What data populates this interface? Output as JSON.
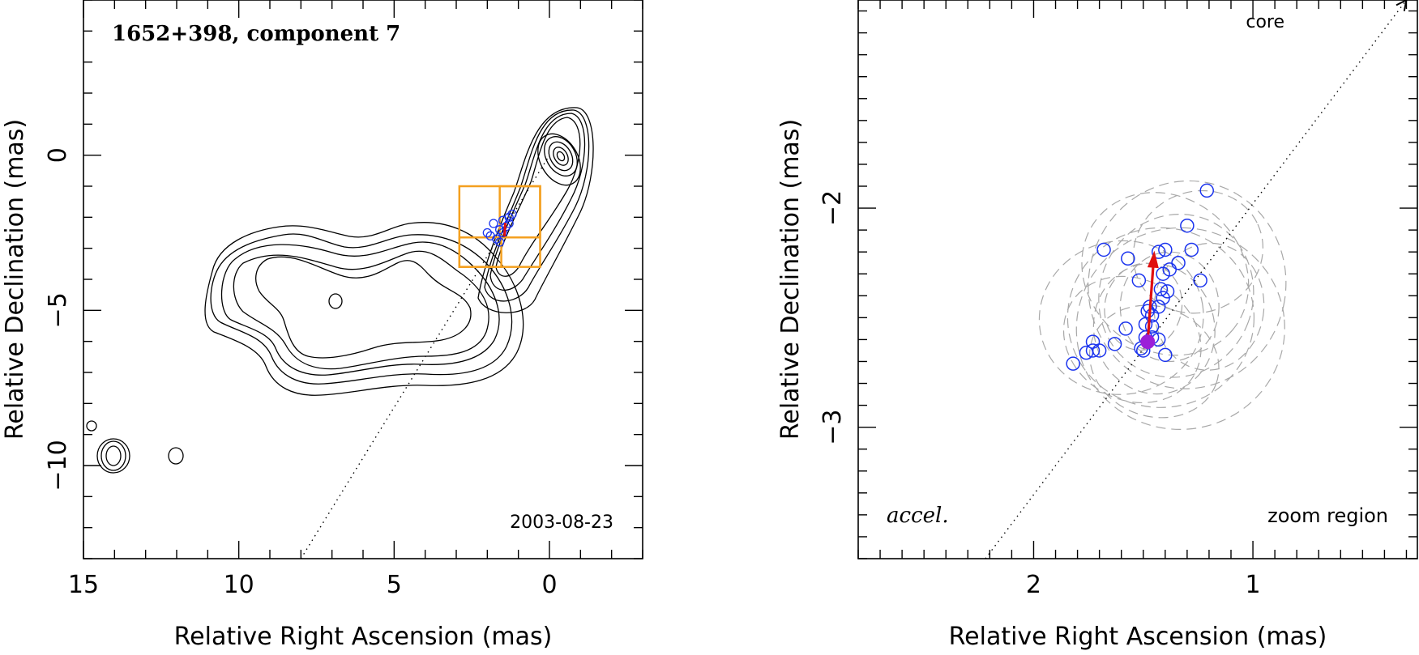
{
  "chart_data": [
    {
      "type": "contour",
      "panel": "left",
      "title": "1652+398, component 7",
      "date_label": "2003-08-23",
      "xlabel": "Relative Right Ascension (mas)",
      "ylabel": "Relative Declination (mas)",
      "xlim": [
        15,
        -3
      ],
      "ylim": [
        -13,
        5
      ],
      "xticks": [
        15,
        10,
        5,
        0
      ],
      "yticks": [
        0,
        -5,
        -10
      ],
      "xtick_labels": [
        "15",
        "10",
        "5",
        "0"
      ],
      "ytick_labels": [
        "0",
        "−5",
        "−10"
      ],
      "core_line": {
        "from": [
          8,
          -13
        ],
        "to": [
          0,
          0
        ],
        "style": "dotted"
      },
      "zoom_boxes": [
        [
          0.3,
          2.9,
          -3.6,
          -1.0
        ],
        [
          0.3,
          1.6,
          -2.65,
          -1.0
        ],
        [
          1.55,
          2.9,
          -3.6,
          -2.65
        ]
      ],
      "component_points": [
        [
          1.8,
          -2.2
        ],
        [
          1.5,
          -2.1
        ],
        [
          1.3,
          -2.0
        ],
        [
          1.2,
          -1.9
        ],
        [
          1.6,
          -2.4
        ],
        [
          1.4,
          -2.3
        ],
        [
          1.9,
          -2.6
        ],
        [
          1.7,
          -2.7
        ],
        [
          1.5,
          -2.5
        ],
        [
          1.3,
          -2.2
        ],
        [
          1.6,
          -2.8
        ],
        [
          2.0,
          -2.5
        ]
      ],
      "accel_arrow": {
        "from": [
          1.45,
          -2.62
        ],
        "to": [
          1.42,
          -2.18
        ]
      }
    },
    {
      "type": "scatter",
      "panel": "right",
      "corner_label": "accel.",
      "region_label": "zoom region",
      "core_label": "core",
      "xlabel": "Relative Right Ascension (mas)",
      "ylabel": "Relative Declination (mas)",
      "xlim": [
        2.8,
        0.25
      ],
      "ylim": [
        -3.6,
        -1.05
      ],
      "xticks": [
        2,
        1
      ],
      "yticks": [
        -2,
        -3
      ],
      "xtick_labels": [
        "2",
        "1"
      ],
      "ytick_labels": [
        "−2",
        "−3"
      ],
      "core_line": {
        "from": [
          2.22,
          -3.6
        ],
        "to": [
          0.3,
          -1.05
        ],
        "style": "dotted"
      },
      "points": [
        [
          1.21,
          -1.92
        ],
        [
          1.3,
          -2.08
        ],
        [
          1.68,
          -2.19
        ],
        [
          1.43,
          -2.2
        ],
        [
          1.4,
          -2.19
        ],
        [
          1.28,
          -2.19
        ],
        [
          1.57,
          -2.23
        ],
        [
          1.34,
          -2.25
        ],
        [
          1.38,
          -2.28
        ],
        [
          1.41,
          -2.3
        ],
        [
          1.52,
          -2.33
        ],
        [
          1.24,
          -2.33
        ],
        [
          1.42,
          -2.37
        ],
        [
          1.39,
          -2.38
        ],
        [
          1.41,
          -2.41
        ],
        [
          1.47,
          -2.45
        ],
        [
          1.43,
          -2.45
        ],
        [
          1.48,
          -2.47
        ],
        [
          1.46,
          -2.49
        ],
        [
          1.49,
          -2.53
        ],
        [
          1.46,
          -2.54
        ],
        [
          1.58,
          -2.55
        ],
        [
          1.46,
          -2.59
        ],
        [
          1.49,
          -2.59
        ],
        [
          1.43,
          -2.6
        ],
        [
          1.73,
          -2.61
        ],
        [
          1.63,
          -2.62
        ],
        [
          1.73,
          -2.65
        ],
        [
          1.51,
          -2.64
        ],
        [
          1.76,
          -2.66
        ],
        [
          1.5,
          -2.65
        ],
        [
          1.7,
          -2.65
        ],
        [
          1.4,
          -2.67
        ],
        [
          1.82,
          -2.71
        ]
      ],
      "first_epoch": [
        1.48,
        -2.61
      ],
      "velocity_arrow": {
        "from": [
          1.48,
          -2.61
        ],
        "to": [
          1.45,
          -2.2
        ]
      },
      "beam_ellipses": [
        [
          1.42,
          -2.5,
          0.85,
          0.82,
          0
        ],
        [
          1.35,
          -2.4,
          0.7,
          0.75,
          20
        ],
        [
          1.45,
          -2.55,
          0.55,
          0.6,
          -15
        ],
        [
          1.3,
          -2.35,
          0.9,
          0.95,
          10
        ],
        [
          1.55,
          -2.6,
          0.65,
          0.55,
          30
        ],
        [
          1.38,
          -2.45,
          0.45,
          0.5,
          0
        ],
        [
          1.25,
          -2.2,
          0.6,
          0.55,
          -25
        ],
        [
          1.5,
          -2.45,
          0.35,
          0.4,
          15
        ],
        [
          1.4,
          -2.3,
          0.8,
          0.7,
          40
        ],
        [
          1.6,
          -2.5,
          0.75,
          0.7,
          -10
        ],
        [
          1.2,
          -2.45,
          0.5,
          0.58,
          5
        ],
        [
          1.45,
          -2.7,
          0.6,
          0.5,
          20
        ],
        [
          1.33,
          -2.55,
          0.95,
          0.92,
          -5
        ]
      ]
    }
  ]
}
